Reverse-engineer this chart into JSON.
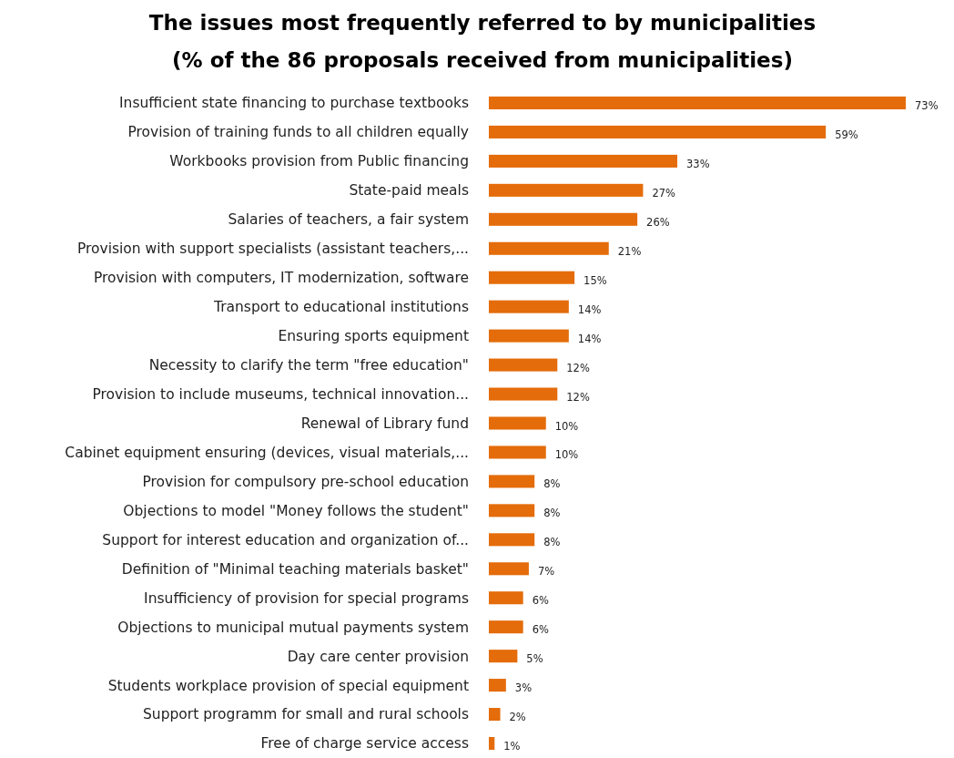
{
  "chart_data": {
    "type": "bar",
    "orientation": "horizontal",
    "title": "The issues most frequently referred to by municipalities",
    "subtitle": "(% of the 86 proposals received from municipalities)",
    "categories": [
      "Insufficient state financing to purchase textbooks",
      "Provision of training funds to all children equally",
      "Workbooks provision from Public financing",
      "State-paid meals",
      "Salaries of teachers, a fair system",
      "Provision with support specialists (assistant teachers,...",
      "Provision with computers, IT modernization, software",
      "Transport to educational institutions",
      "Ensuring sports equipment",
      "Necessity to clarify the term \"free education\"",
      "Provision to include museums, technical innovation...",
      "Renewal of Library fund",
      "Cabinet equipment ensuring (devices, visual materials,...",
      "Provision for compulsory pre-school education",
      "Objections to model \"Money follows the student\"",
      "Support for interest education and organization of...",
      "Definition of \"Minimal teaching materials basket\"",
      "Insufficiency of provision for special programs",
      "Objections to municipal mutual payments system",
      "Day care center provision",
      "Students workplace provision of special equipment",
      "Support programm for small and rural schools",
      "Free of charge service access"
    ],
    "values": [
      73,
      59,
      33,
      27,
      26,
      21,
      15,
      14,
      14,
      12,
      12,
      10,
      10,
      8,
      8,
      8,
      7,
      6,
      6,
      5,
      3,
      2,
      1
    ],
    "value_labels": [
      "73%",
      "59%",
      "33%",
      "27%",
      "26%",
      "21%",
      "15%",
      "14%",
      "14%",
      "12%",
      "12%",
      "10%",
      "10%",
      "8%",
      "8%",
      "8%",
      "7%",
      "6%",
      "6%",
      "5%",
      "3%",
      "2%",
      "1%"
    ],
    "color": "#e46c0a"
  }
}
